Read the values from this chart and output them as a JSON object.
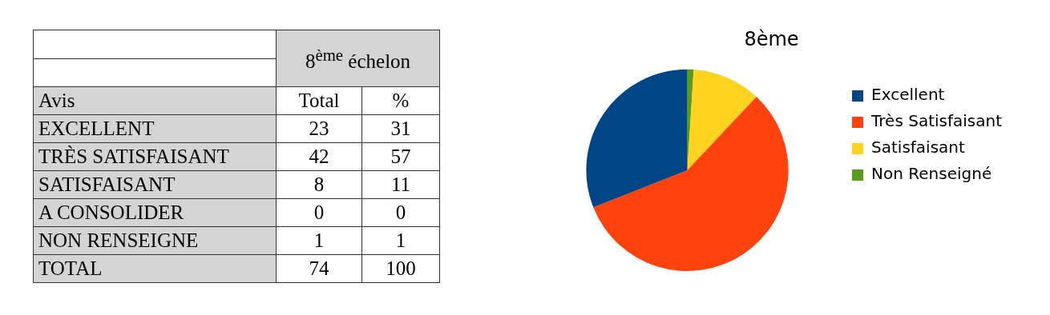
{
  "chart_data": [
    {
      "type": "heatmap",
      "title": "8$^{ème}$ échelon",
      "ylabel": "Avis",
      "categories": [
        "Total",
        "%"
      ],
      "y_categories": [
        "EXCELLENT",
        "TRÈS SATISFAISANT",
        "SATISFAISANT",
        "A CONSOLIDER",
        "NON RENSEIGNE",
        "TOTAL"
      ],
      "cells": [
        [
          23,
          31
        ],
        [
          42,
          57
        ],
        [
          8,
          11
        ],
        [
          0,
          0
        ],
        [
          1,
          1
        ],
        [
          74,
          100
        ]
      ],
      "data_labels": true
    },
    {
      "type": "pie",
      "title": "8ème",
      "categories": [
        "Excellent",
        "Très Satisfaisant",
        "Satisfaisant",
        "Non Renseigné"
      ],
      "values": [
        31,
        57,
        11,
        1
      ],
      "colors": [
        "#004586",
        "#ff420e",
        "#ffd320",
        "#579d1c"
      ],
      "legend": "right"
    }
  ]
}
